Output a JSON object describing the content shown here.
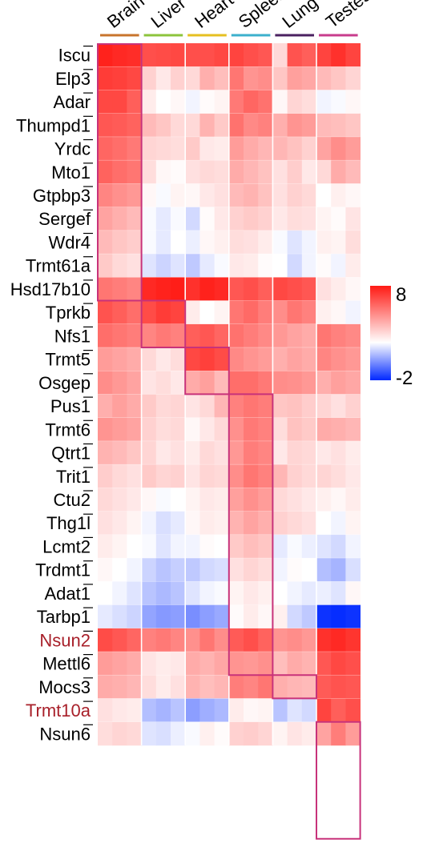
{
  "chart_data": {
    "type": "heatmap",
    "tissues": [
      {
        "name": "Brain",
        "color": "#c8742c"
      },
      {
        "name": "Liver",
        "color": "#8cc43c"
      },
      {
        "name": "Heart",
        "color": "#e6c020"
      },
      {
        "name": "Spleen",
        "color": "#3cb0cc"
      },
      {
        "name": "Lung",
        "color": "#4a2060"
      },
      {
        "name": "Testes",
        "color": "#c83c8c"
      }
    ],
    "genes": [
      {
        "name": "Iscu",
        "highlight": false
      },
      {
        "name": "Elp3",
        "highlight": false
      },
      {
        "name": "Adar",
        "highlight": false
      },
      {
        "name": "Thumpd1",
        "highlight": false
      },
      {
        "name": "Yrdc",
        "highlight": false
      },
      {
        "name": "Mto1",
        "highlight": false
      },
      {
        "name": "Gtpbp3",
        "highlight": false
      },
      {
        "name": "Sergef",
        "highlight": false
      },
      {
        "name": "Wdr4",
        "highlight": false
      },
      {
        "name": "Trmt61a",
        "highlight": false
      },
      {
        "name": "Hsd17b10",
        "highlight": false
      },
      {
        "name": "Tprkb",
        "highlight": false
      },
      {
        "name": "Nfs1",
        "highlight": false
      },
      {
        "name": "Trmt5",
        "highlight": false
      },
      {
        "name": "Osgep",
        "highlight": false
      },
      {
        "name": "Pus1",
        "highlight": false
      },
      {
        "name": "Trmt6",
        "highlight": false
      },
      {
        "name": "Qtrt1",
        "highlight": false
      },
      {
        "name": "Trit1",
        "highlight": false
      },
      {
        "name": "Ctu2",
        "highlight": false
      },
      {
        "name": "Thg1l",
        "highlight": false
      },
      {
        "name": "Lcmt2",
        "highlight": false
      },
      {
        "name": "Trdmt1",
        "highlight": false
      },
      {
        "name": "Adat1",
        "highlight": false
      },
      {
        "name": "Tarbp1",
        "highlight": false
      },
      {
        "name": "Nsun2",
        "highlight": true
      },
      {
        "name": "Mettl6",
        "highlight": false
      },
      {
        "name": "Mocs3",
        "highlight": false
      },
      {
        "name": "Trmt10a",
        "highlight": true
      },
      {
        "name": "Nsun6",
        "highlight": false
      }
    ],
    "values": [
      [
        7.8,
        7.6,
        7.5,
        6.6,
        6.7,
        6.8,
        6.6,
        6.6,
        6.8,
        6.9,
        6.6,
        6.4,
        3.0,
        6.5,
        6.2,
        6.9,
        7.4,
        6.9
      ],
      [
        7.1,
        7.0,
        6.8,
        3.2,
        2.6,
        3.2,
        3.0,
        4.1,
        3.7,
        5.6,
        4.8,
        5.0,
        3.5,
        4.5,
        4.3,
        3.8,
        3.5,
        3.1
      ],
      [
        6.8,
        6.8,
        6.2,
        2.5,
        2.0,
        2.2,
        1.8,
        2.1,
        2.3,
        5.5,
        6.0,
        5.7,
        2.2,
        3.1,
        2.9,
        1.8,
        1.9,
        2.2
      ],
      [
        6.4,
        6.3,
        6.1,
        3.8,
        3.5,
        3.0,
        3.0,
        4.0,
        3.4,
        5.7,
        5.1,
        5.3,
        4.1,
        4.8,
        4.6,
        3.8,
        3.7,
        3.5
      ],
      [
        6.0,
        5.8,
        5.5,
        3.1,
        3.0,
        2.9,
        3.4,
        2.6,
        2.5,
        4.6,
        4.2,
        3.9,
        3.9,
        3.6,
        3.2,
        4.4,
        5.0,
        4.6
      ],
      [
        6.1,
        5.8,
        5.6,
        2.9,
        2.2,
        2.1,
        2.8,
        3.0,
        2.9,
        4.2,
        3.9,
        3.6,
        2.8,
        3.3,
        2.6,
        3.0,
        4.2,
        3.8
      ],
      [
        5.2,
        4.9,
        4.7,
        2.2,
        1.9,
        2.3,
        2.2,
        2.6,
        2.8,
        3.8,
        4.0,
        3.6,
        2.8,
        3.2,
        3.0,
        2.0,
        2.4,
        2.2
      ],
      [
        4.4,
        4.1,
        3.8,
        1.9,
        1.6,
        1.9,
        1.3,
        2.1,
        2.6,
        3.2,
        3.4,
        3.2,
        2.6,
        2.9,
        2.8,
        2.3,
        2.1,
        2.7
      ],
      [
        3.8,
        3.5,
        3.3,
        1.9,
        1.6,
        2.0,
        1.7,
        2.2,
        2.4,
        2.9,
        2.8,
        2.5,
        1.9,
        1.5,
        1.8,
        2.4,
        2.3,
        2.9
      ],
      [
        3.4,
        3.0,
        2.8,
        1.5,
        1.2,
        1.5,
        1.0,
        1.6,
        1.9,
        2.6,
        2.5,
        2.1,
        2.0,
        1.3,
        1.8,
        2.1,
        1.8,
        2.5
      ],
      [
        5.6,
        5.4,
        5.2,
        7.6,
        7.8,
        7.9,
        7.4,
        7.8,
        7.6,
        6.4,
        6.6,
        6.2,
        6.8,
        6.6,
        6.4,
        2.8,
        2.5,
        2.2
      ],
      [
        6.5,
        6.2,
        5.8,
        6.7,
        7.1,
        6.9,
        2.5,
        2.0,
        2.3,
        5.6,
        5.9,
        5.4,
        5.0,
        5.6,
        5.3,
        2.4,
        2.2,
        1.8
      ],
      [
        5.8,
        5.6,
        5.4,
        5.2,
        5.5,
        5.3,
        6.2,
        6.4,
        6.0,
        5.7,
        5.4,
        5.1,
        4.7,
        4.4,
        4.2,
        5.6,
        5.3,
        5.1
      ],
      [
        4.6,
        4.4,
        4.2,
        3.0,
        2.6,
        2.9,
        6.8,
        7.0,
        6.7,
        5.1,
        4.8,
        4.6,
        4.1,
        4.4,
        4.2,
        5.2,
        4.9,
        4.7
      ],
      [
        5.0,
        4.7,
        4.4,
        2.7,
        2.9,
        2.6,
        4.2,
        4.5,
        3.8,
        5.8,
        5.8,
        5.5,
        5.0,
        4.9,
        4.7,
        4.1,
        4.5,
        4.3
      ],
      [
        4.1,
        4.5,
        4.2,
        3.4,
        3.0,
        3.1,
        2.7,
        3.0,
        3.9,
        5.3,
        5.6,
        5.4,
        3.5,
        3.6,
        3.3,
        3.1,
        2.8,
        3.2
      ],
      [
        4.8,
        4.6,
        4.4,
        3.2,
        2.9,
        3.0,
        2.2,
        2.6,
        3.0,
        4.9,
        5.5,
        5.3,
        2.9,
        3.6,
        3.4,
        4.2,
        4.1,
        3.9
      ],
      [
        4.0,
        3.8,
        3.5,
        3.1,
        2.6,
        2.8,
        2.5,
        3.0,
        2.8,
        4.7,
        5.4,
        5.2,
        2.6,
        3.1,
        3.0,
        2.6,
        2.8,
        2.5
      ],
      [
        3.3,
        3.0,
        2.8,
        3.4,
        3.1,
        3.2,
        2.7,
        3.1,
        3.0,
        5.0,
        5.6,
        5.3,
        3.9,
        3.2,
        3.0,
        3.1,
        2.9,
        2.6
      ],
      [
        3.0,
        2.8,
        2.6,
        2.2,
        1.9,
        2.0,
        2.3,
        2.6,
        2.5,
        4.5,
        4.9,
        4.6,
        3.0,
        2.8,
        2.6,
        2.4,
        2.2,
        2.5
      ],
      [
        2.8,
        2.6,
        2.3,
        1.8,
        1.4,
        1.6,
        2.2,
        2.5,
        2.4,
        4.0,
        4.4,
        4.1,
        3.2,
        3.0,
        2.8,
        2.0,
        1.8,
        2.3
      ],
      [
        2.5,
        2.3,
        2.0,
        1.9,
        1.5,
        1.8,
        1.8,
        2.1,
        2.0,
        3.4,
        3.7,
        3.5,
        1.6,
        1.9,
        1.7,
        1.5,
        1.3,
        1.8
      ],
      [
        2.2,
        2.0,
        1.8,
        1.2,
        0.9,
        1.1,
        1.0,
        1.3,
        1.4,
        2.8,
        3.1,
        2.9,
        1.8,
        2.1,
        2.0,
        0.8,
        0.6,
        1.4
      ],
      [
        2.0,
        1.8,
        1.5,
        0.9,
        0.7,
        0.9,
        1.5,
        1.8,
        1.9,
        2.3,
        2.6,
        2.4,
        2.0,
        1.8,
        1.6,
        1.7,
        1.5,
        2.2
      ],
      [
        1.6,
        1.4,
        1.2,
        0.3,
        0.1,
        0.2,
        -0.1,
        0.2,
        0.4,
        2.1,
        2.5,
        2.2,
        2.4,
        1.3,
        1.0,
        -1.8,
        -1.9,
        -1.8
      ],
      [
        6.7,
        6.4,
        6.0,
        5.3,
        5.5,
        5.2,
        4.9,
        5.6,
        5.0,
        6.3,
        6.6,
        6.1,
        4.8,
        5.0,
        4.7,
        7.4,
        7.6,
        7.3
      ],
      [
        4.6,
        4.4,
        4.2,
        2.7,
        2.5,
        2.6,
        4.2,
        4.0,
        4.3,
        4.8,
        4.7,
        4.9,
        3.7,
        4.2,
        4.0,
        6.4,
        6.8,
        6.6
      ],
      [
        4.2,
        4.1,
        3.9,
        2.9,
        2.5,
        2.8,
        4.0,
        3.7,
        3.9,
        5.4,
        5.2,
        5.6,
        4.1,
        3.9,
        3.8,
        6.3,
        6.5,
        6.4
      ],
      [
        2.8,
        2.6,
        2.5,
        0.8,
        0.6,
        0.9,
        0.2,
        0.5,
        0.7,
        2.5,
        2.2,
        2.3,
        0.9,
        1.5,
        1.3,
        6.9,
        6.2,
        6.6
      ],
      [
        2.9,
        3.1,
        3.0,
        1.5,
        1.4,
        1.7,
        1.9,
        2.4,
        2.1,
        3.2,
        3.3,
        3.1,
        2.3,
        2.7,
        2.5,
        4.4,
        5.4,
        4.6
      ]
    ],
    "colorbar": {
      "min": -2,
      "max": 8,
      "min_label": "-2",
      "max_label": "8",
      "low_color": "#0028ff",
      "mid_color": "#ffffff",
      "high_color": "#ff1a14"
    },
    "highlight_label_color": "#a8202a",
    "box_color": "#c8327a"
  }
}
